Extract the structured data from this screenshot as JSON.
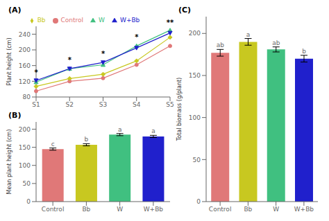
{
  "chart_data": [
    {
      "type": "line",
      "title": "(A)",
      "ylabel": "Plant height (cm)",
      "categories": [
        "S1",
        "S2",
        "S3",
        "S4",
        "S5"
      ],
      "series": [
        {
          "name": "Control",
          "color": "#E07878",
          "marker": "circle",
          "line_style": "solid",
          "values": [
            95,
            120,
            128,
            162,
            210
          ]
        },
        {
          "name": "Bb",
          "color": "#C8C820",
          "marker": "diamond",
          "line_style": "solid",
          "values": [
            107,
            127,
            138,
            172,
            232
          ]
        },
        {
          "name": "W",
          "color": "#40C080",
          "marker": "triangle",
          "line_style": "solid",
          "values": [
            118,
            152,
            162,
            210,
            250
          ]
        },
        {
          "name": "W+Bb",
          "color": "#2020CC",
          "marker": "triangle-down",
          "line_style": "solid",
          "values": [
            122,
            152,
            168,
            205,
            243
          ]
        }
      ],
      "ylim": [
        80,
        260
      ],
      "yticks": [
        80,
        120,
        160,
        200,
        240
      ],
      "annotations": [
        {
          "x": "S1",
          "y": 128,
          "text": "*"
        },
        {
          "x": "S2",
          "y": 160,
          "text": "*"
        },
        {
          "x": "S3",
          "y": 176,
          "text": "*"
        },
        {
          "x": "S4",
          "y": 218,
          "text": "*"
        },
        {
          "x": "S5",
          "y": 255,
          "text": "**"
        }
      ],
      "legend": "top",
      "grid": false
    },
    {
      "type": "bar",
      "title": "(B)",
      "ylabel": "Mean plant height (cm)",
      "categories": [
        "Control",
        "Bb",
        "W",
        "W+Bb"
      ],
      "values": [
        145,
        157,
        185,
        180
      ],
      "errors": [
        3,
        3,
        3,
        3
      ],
      "colors": [
        "#E07878",
        "#C8C820",
        "#40C080",
        "#2020CC"
      ],
      "ylim": [
        0,
        220
      ],
      "yticks": [
        0,
        50,
        100,
        150,
        200
      ],
      "annotations": [
        "c",
        "b",
        "a",
        "a"
      ],
      "grid": false
    },
    {
      "type": "bar",
      "title": "(C)",
      "ylabel": "Total biomass (g/plant)",
      "categories": [
        "Control",
        "Bb",
        "W",
        "W+Bb"
      ],
      "values": [
        177,
        190,
        181,
        170
      ],
      "errors": [
        4,
        4,
        3,
        4
      ],
      "colors": [
        "#E07878",
        "#C8C820",
        "#40C080",
        "#2020CC"
      ],
      "ylim": [
        0,
        220
      ],
      "yticks": [
        0,
        50,
        100,
        150,
        200
      ],
      "annotations": [
        "ab",
        "a",
        "ab",
        "b"
      ],
      "grid": false
    }
  ]
}
